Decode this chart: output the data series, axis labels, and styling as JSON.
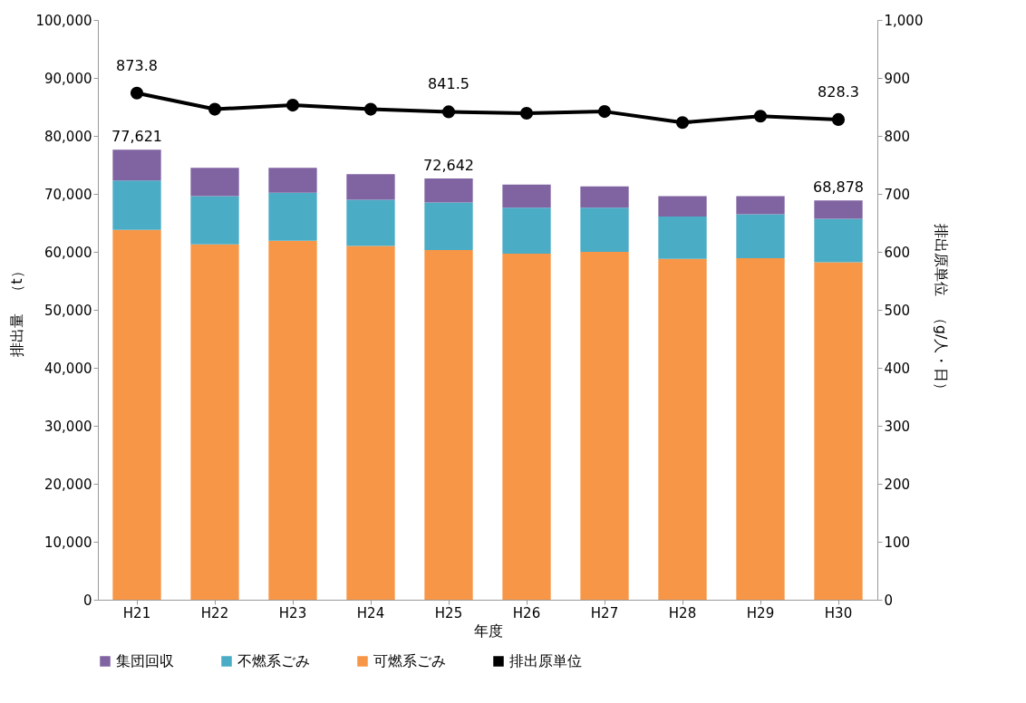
{
  "chart_data": {
    "type": "bar",
    "stacked": true,
    "xlabel": "年度",
    "ylabel": "排出量　（t）",
    "y2label": "排出原単位　（g/人・日）",
    "categories": [
      "H21",
      "H22",
      "H23",
      "H24",
      "H25",
      "H26",
      "H27",
      "H28",
      "H29",
      "H30"
    ],
    "ylim": [
      0,
      100000
    ],
    "yticks": [
      0,
      {
        "value": 10000,
        "label": "10,000"
      },
      {
        "value": 20000,
        "label": "20,000"
      },
      {
        "value": 30000,
        "label": "30,000"
      },
      {
        "value": 40000,
        "label": "40,000"
      },
      {
        "value": 50000,
        "label": "50,000"
      },
      {
        "value": 60000,
        "label": "60,000"
      },
      {
        "value": 70000,
        "label": "70,000"
      },
      {
        "value": 80000,
        "label": "80,000"
      },
      {
        "value": 90000,
        "label": "90,000"
      },
      {
        "value": 100000,
        "label": "100,000"
      }
    ],
    "y2lim": [
      0,
      1000
    ],
    "y2ticks": [
      0,
      100,
      200,
      300,
      400,
      500,
      600,
      700,
      800,
      900,
      {
        "value": 1000,
        "label": "1,000"
      }
    ],
    "series": [
      {
        "name": "可燃系ごみ",
        "color": "#f79646",
        "values": [
          63800,
          61300,
          61900,
          61000,
          60300,
          59700,
          60000,
          58800,
          58900,
          58200
        ]
      },
      {
        "name": "不燃系ごみ",
        "color": "#4bacc6",
        "values": [
          8500,
          8300,
          8300,
          8000,
          8200,
          7900,
          7600,
          7300,
          7600,
          7500
        ]
      },
      {
        "name": "集団回収",
        "color": "#8064a2",
        "values": [
          5321,
          4900,
          4300,
          4400,
          4142,
          4000,
          3700,
          3500,
          3100,
          3178
        ]
      },
      {
        "name": "排出原単位",
        "color": "#000000",
        "type": "line",
        "axis": "y2",
        "marker": "circle",
        "values": [
          873.8,
          846,
          853,
          846,
          841.5,
          839,
          842,
          823,
          834,
          828.3
        ],
        "value_labels": [
          "873.8",
          null,
          null,
          null,
          "841.5",
          null,
          null,
          null,
          null,
          "828.3"
        ]
      }
    ],
    "totals": [
      "77,621",
      null,
      null,
      null,
      "72,642",
      null,
      null,
      null,
      null,
      "68,878"
    ],
    "legend": "bottom",
    "grid": false
  }
}
